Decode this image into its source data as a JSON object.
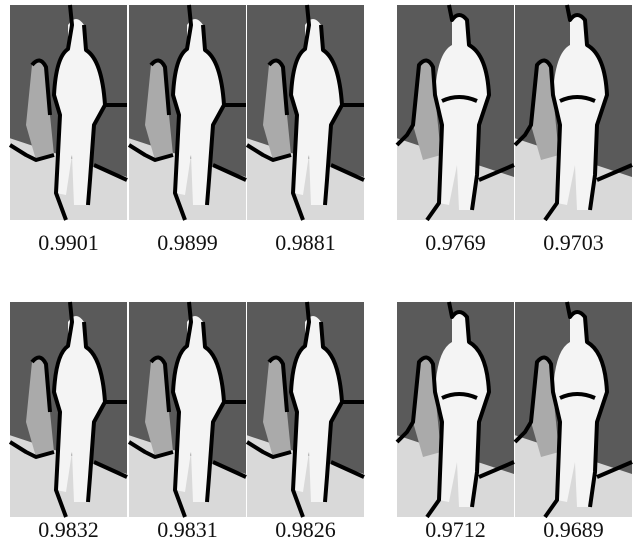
{
  "rows": [
    {
      "left": [
        "0.9901",
        "0.9899",
        "0.9881"
      ],
      "right": [
        "0.9769",
        "0.9703"
      ]
    },
    {
      "left": [
        "0.9832",
        "0.9831",
        "0.9826"
      ],
      "right": [
        "0.9712",
        "0.9689"
      ]
    }
  ]
}
